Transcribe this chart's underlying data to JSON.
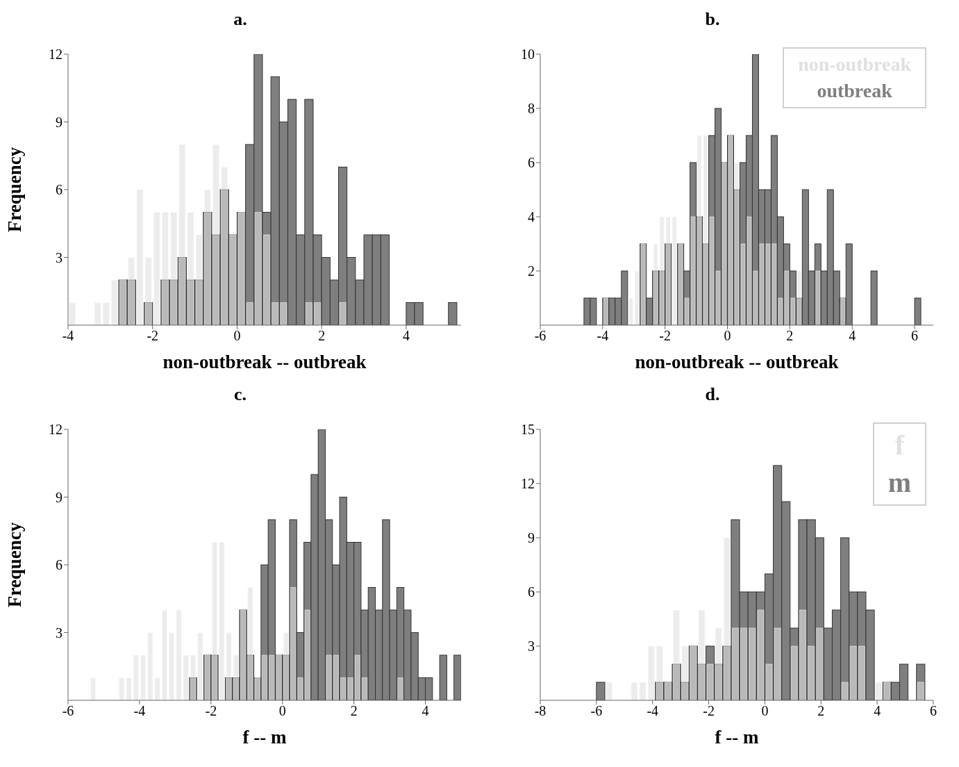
{
  "chart_data": [
    {
      "type": "histogram",
      "title": "a.",
      "xlabel": "non-outbreak -- outbreak",
      "ylabel": "Frequency",
      "legend": false,
      "xlim": [
        -4,
        5.3
      ],
      "xticks": [
        -4,
        -2,
        0,
        2,
        4
      ],
      "ylim": [
        0,
        12
      ],
      "yticks": [
        3,
        6,
        9,
        12
      ],
      "bins": [
        -4,
        -3.8,
        -3.6,
        -3.4,
        -3.2,
        -3,
        -2.8,
        -2.6,
        -2.4,
        -2.2,
        -2,
        -1.8,
        -1.6,
        -1.4,
        -1.2,
        -1,
        -0.8,
        -0.6,
        -0.4,
        -0.2,
        0,
        0.2,
        0.4,
        0.6,
        0.8,
        1,
        1.2,
        1.4,
        1.6,
        1.8,
        2,
        2.2,
        2.4,
        2.6,
        2.8,
        3,
        3.2,
        3.4,
        3.6,
        3.8,
        4,
        4.2,
        4.4,
        4.6,
        4.8,
        5,
        5.2
      ],
      "series": [
        {
          "color": "#e0e0e0",
          "values": [
            1,
            0,
            0,
            1,
            1,
            2,
            2,
            3,
            6,
            3,
            5,
            5,
            5,
            8,
            5,
            4,
            6,
            8,
            7,
            4,
            5,
            1,
            5,
            4,
            1,
            1,
            0,
            0,
            1,
            1,
            0,
            0,
            1,
            0,
            0,
            0,
            0,
            0,
            0,
            0,
            0,
            0,
            0,
            0,
            0,
            0
          ]
        },
        {
          "color": "#7f7f7f",
          "values": [
            0,
            0,
            0,
            0,
            0,
            0,
            2,
            2,
            0,
            1,
            0,
            2,
            2,
            3,
            2,
            2,
            5,
            4,
            6,
            4,
            5,
            8,
            12,
            5,
            11,
            9,
            10,
            4,
            10,
            4,
            3,
            2,
            7,
            3,
            2,
            4,
            4,
            4,
            0,
            0,
            1,
            1,
            0,
            0,
            0,
            1
          ]
        }
      ]
    },
    {
      "type": "histogram",
      "title": "b.",
      "xlabel": "non-outbreak -- outbreak",
      "legend": "top right",
      "xlim": [
        -6,
        6.6
      ],
      "xticks": [
        -6,
        -4,
        -2,
        0,
        2,
        4,
        6
      ],
      "ylim": [
        0,
        10
      ],
      "yticks": [
        2,
        4,
        6,
        8,
        10
      ],
      "bins": [
        -4.6,
        -4.4,
        -4.2,
        -4,
        -3.8,
        -3.6,
        -3.4,
        -3.2,
        -3,
        -2.8,
        -2.6,
        -2.4,
        -2.2,
        -2,
        -1.8,
        -1.6,
        -1.4,
        -1.2,
        -1,
        -0.8,
        -0.6,
        -0.4,
        -0.2,
        0,
        0.2,
        0.4,
        0.6,
        0.8,
        1,
        1.2,
        1.4,
        1.6,
        1.8,
        2,
        2.2,
        2.4,
        2.6,
        2.8,
        3,
        3.2,
        3.4,
        3.6,
        3.8,
        4,
        4.2,
        4.4,
        4.6,
        4.8,
        5,
        5.2,
        5.4,
        5.6,
        5.8,
        6,
        6.2,
        6.4
      ],
      "series": [
        {
          "name": "non-outbreak",
          "color": "#e0e0e0",
          "values": [
            0,
            0,
            0,
            1,
            0,
            0,
            0,
            1,
            2,
            3,
            0,
            3,
            4,
            4,
            4,
            3,
            1,
            4,
            7,
            7,
            4,
            2,
            6,
            7,
            6,
            3,
            4,
            2,
            3,
            3,
            3,
            1,
            2,
            1,
            2,
            0,
            0,
            2,
            0,
            0,
            0,
            1,
            0,
            0,
            0,
            0,
            0,
            0,
            0,
            0,
            0,
            0,
            0,
            0,
            0
          ]
        },
        {
          "name": "outbreak",
          "color": "#7f7f7f",
          "values": [
            1,
            1,
            0,
            1,
            1,
            1,
            2,
            0,
            0,
            3,
            1,
            2,
            2,
            3,
            0,
            3,
            2,
            6,
            4,
            3,
            7,
            8,
            6,
            7,
            5,
            6,
            7,
            10,
            5,
            5,
            7,
            4,
            3,
            2,
            1,
            5,
            2,
            3,
            2,
            5,
            2,
            1,
            3,
            0,
            0,
            0,
            2,
            0,
            0,
            0,
            0,
            0,
            0,
            1,
            0
          ]
        }
      ]
    },
    {
      "type": "histogram",
      "title": "c.",
      "xlabel": "f -- m",
      "ylabel": "Frequency",
      "legend": false,
      "xlim": [
        -6,
        5
      ],
      "xticks": [
        -6,
        -4,
        -2,
        0,
        2,
        4
      ],
      "ylim": [
        0,
        12
      ],
      "yticks": [
        3,
        6,
        9,
        12
      ],
      "bins": [
        -5.4,
        -5.2,
        -5,
        -4.8,
        -4.6,
        -4.4,
        -4.2,
        -4,
        -3.8,
        -3.6,
        -3.4,
        -3.2,
        -3,
        -2.8,
        -2.6,
        -2.4,
        -2.2,
        -2,
        -1.8,
        -1.6,
        -1.4,
        -1.2,
        -1,
        -0.8,
        -0.6,
        -0.4,
        -0.2,
        0,
        0.2,
        0.4,
        0.6,
        0.8,
        1,
        1.2,
        1.4,
        1.6,
        1.8,
        2,
        2.2,
        2.4,
        2.6,
        2.8,
        3,
        3.2,
        3.4,
        3.6,
        3.8,
        4,
        4.2,
        4.4,
        4.6,
        4.8,
        5
      ],
      "series": [
        {
          "color": "#e0e0e0",
          "values": [
            1,
            0,
            0,
            0,
            1,
            1,
            2,
            2,
            3,
            1,
            4,
            3,
            4,
            2,
            2,
            3,
            2,
            7,
            7,
            3,
            2,
            4,
            5,
            1,
            2,
            2,
            2,
            3,
            5,
            1,
            4,
            0,
            0,
            2,
            2,
            1,
            1,
            2,
            1,
            0,
            0,
            0,
            0,
            1,
            0,
            0,
            0,
            0,
            0,
            0,
            0,
            0
          ]
        },
        {
          "color": "#7f7f7f",
          "values": [
            0,
            0,
            0,
            0,
            0,
            0,
            0,
            0,
            0,
            0,
            0,
            0,
            0,
            0,
            1,
            0,
            2,
            2,
            0,
            1,
            1,
            4,
            2,
            1,
            6,
            8,
            2,
            2,
            8,
            3,
            7,
            10,
            12,
            8,
            6,
            9,
            7,
            7,
            4,
            5,
            4,
            8,
            4,
            5,
            4,
            3,
            1,
            1,
            0,
            2,
            0,
            2
          ]
        }
      ]
    },
    {
      "type": "histogram",
      "title": "d.",
      "xlabel": "f -- m",
      "legend": "top right",
      "xlim": [
        -8,
        6
      ],
      "xticks": [
        -8,
        -6,
        -4,
        -2,
        0,
        2,
        4,
        6
      ],
      "ylim": [
        0,
        15
      ],
      "yticks": [
        3,
        6,
        9,
        12,
        15
      ],
      "bins": [
        -6,
        -5.7,
        -5.4,
        -5.1,
        -4.8,
        -4.5,
        -4.2,
        -3.9,
        -3.6,
        -3.3,
        -3,
        -2.7,
        -2.4,
        -2.1,
        -1.8,
        -1.5,
        -1.2,
        -0.9,
        -0.6,
        -0.3,
        0,
        0.3,
        0.6,
        0.9,
        1.2,
        1.5,
        1.8,
        2.1,
        2.4,
        2.7,
        3,
        3.3,
        3.6,
        3.9,
        4.2,
        4.5,
        4.8,
        5.1,
        5.4,
        5.7
      ],
      "series": [
        {
          "name": "f",
          "color": "#e0e0e0",
          "values": [
            0,
            1,
            0,
            0,
            1,
            1,
            3,
            3,
            1,
            5,
            3,
            3,
            5,
            2,
            4,
            9,
            4,
            4,
            4,
            5,
            2,
            4,
            0,
            3,
            5,
            3,
            4,
            0,
            0,
            1,
            3,
            3,
            0,
            1,
            1,
            0,
            0,
            0,
            1
          ]
        },
        {
          "name": "m",
          "color": "#7f7f7f",
          "values": [
            1,
            0,
            0,
            0,
            0,
            0,
            0,
            1,
            1,
            2,
            1,
            3,
            2,
            3,
            2,
            3,
            10,
            6,
            6,
            6,
            7,
            13,
            11,
            4,
            10,
            10,
            9,
            4,
            5,
            9,
            6,
            6,
            5,
            0,
            1,
            1,
            2,
            0,
            2
          ]
        }
      ]
    }
  ]
}
